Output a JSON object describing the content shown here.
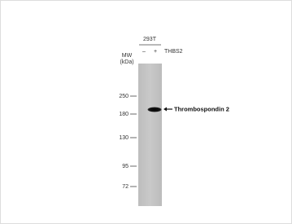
{
  "header": {
    "cell_line": "293T",
    "lanes": [
      "–",
      "+"
    ],
    "treatment": "THBS2",
    "mw_label": "MW",
    "mw_unit": "(kDa)"
  },
  "markers": [
    250,
    180,
    130,
    95,
    72
  ],
  "band_label": "Thrombospondin 2"
}
